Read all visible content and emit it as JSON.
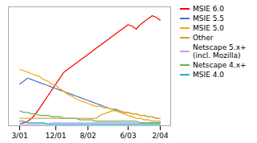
{
  "chart_data": {
    "type": "line",
    "categories": [
      "3/01",
      null,
      null,
      null,
      null,
      null,
      null,
      null,
      null,
      "12/01",
      null,
      null,
      null,
      null,
      null,
      null,
      null,
      "8/02",
      null,
      null,
      null,
      null,
      null,
      null,
      null,
      null,
      null,
      "6/03",
      null,
      null,
      null,
      null,
      null,
      null,
      null,
      "2/04"
    ],
    "series": [
      {
        "name": "MSIE 6.0",
        "color": "#ff0000",
        "values": [
          1,
          2,
          3,
          5,
          8,
          12,
          16,
          20,
          24,
          28,
          32,
          36,
          38,
          40,
          42,
          44,
          46,
          48,
          50,
          52,
          54,
          56,
          58,
          60,
          62,
          64,
          66,
          68,
          67,
          65,
          68,
          70,
          72,
          74,
          73,
          71
        ]
      },
      {
        "name": "MSIE 5.5",
        "color": "#4472c4",
        "values": [
          28,
          30,
          32,
          31,
          30,
          29,
          28,
          27,
          26,
          25,
          24,
          23,
          22,
          21,
          20,
          19,
          18,
          17,
          16,
          15,
          14,
          13,
          12,
          11,
          11,
          10,
          9,
          9,
          8,
          8,
          7,
          7,
          6,
          6,
          5,
          5
        ]
      },
      {
        "name": "MSIE 5.0",
        "color": "#ffa500",
        "values": [
          38,
          37,
          36,
          35,
          34,
          33,
          31,
          30,
          28,
          27,
          25,
          23,
          21,
          20,
          18,
          17,
          16,
          15,
          14,
          13,
          13,
          12,
          12,
          11,
          10,
          10,
          9,
          9,
          8,
          8,
          7,
          7,
          6,
          6,
          5,
          5
        ]
      },
      {
        "name": "Other",
        "color": "#d4a017",
        "values": [
          5,
          5,
          5,
          5,
          5,
          5,
          5,
          5,
          5,
          5,
          5,
          5,
          5,
          5,
          5,
          5,
          5,
          5,
          5,
          5,
          7,
          8,
          9,
          10,
          10,
          9,
          8,
          7,
          6,
          5,
          5,
          4,
          4,
          3,
          3,
          3
        ]
      },
      {
        "name": "Netscape 5.x+\n(incl. Mozilla)",
        "color": "#cc99ff",
        "values": [
          1,
          1,
          1,
          1,
          1,
          1,
          1,
          1,
          2,
          2,
          2,
          2,
          2,
          2,
          2,
          2,
          2,
          2,
          2,
          2,
          2,
          2,
          2,
          2,
          2,
          2,
          2,
          2,
          2,
          2,
          2,
          2,
          2,
          2,
          2,
          2
        ]
      },
      {
        "name": "Netscape 4.x+",
        "color": "#70ad47",
        "values": [
          10,
          9,
          9,
          8,
          8,
          7,
          7,
          7,
          6,
          6,
          6,
          5,
          5,
          5,
          5,
          4,
          4,
          4,
          4,
          3,
          3,
          3,
          3,
          3,
          3,
          3,
          3,
          3,
          3,
          3,
          2,
          2,
          2,
          2,
          2,
          2
        ]
      },
      {
        "name": "MSIE 4.0",
        "color": "#00bcd4",
        "values": [
          3,
          3,
          2,
          2,
          2,
          2,
          2,
          1,
          1,
          1,
          1,
          1,
          1,
          1,
          1,
          1,
          1,
          1,
          1,
          1,
          1,
          1,
          1,
          1,
          1,
          1,
          1,
          1,
          1,
          1,
          1,
          1,
          1,
          1,
          1,
          1
        ]
      }
    ],
    "ylim": [
      0,
      80
    ],
    "tick_labels": "x",
    "grid": false,
    "legend": "right"
  }
}
